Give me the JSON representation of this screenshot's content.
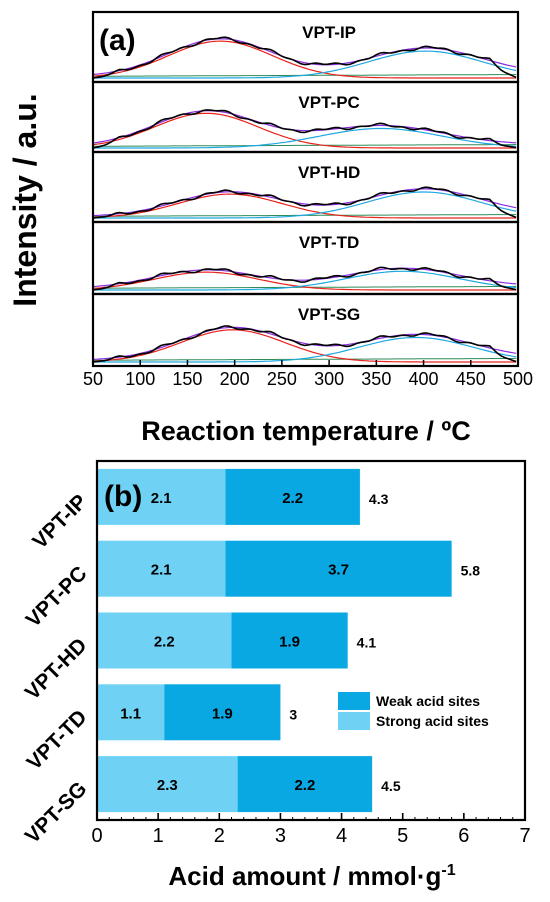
{
  "chart_data": [
    {
      "type": "line",
      "panel_label": "(a)",
      "xlabel": "Reaction temperature / ºC",
      "ylabel": "Intensity / a.u.",
      "xlim": [
        50,
        500
      ],
      "xticks": [
        "50",
        "100",
        "150",
        "200",
        "250",
        "300",
        "350",
        "400",
        "450",
        "500"
      ],
      "series_colors": {
        "measured": "#000000",
        "fit_total": "#8a2be2",
        "low_temp_peak": "#e8231d",
        "high_temp_peak": "#1fa8e0",
        "baseline": "#2e8b57"
      },
      "panels": [
        {
          "name": "VPT-IP",
          "low_peak": {
            "center": 185,
            "width": 55,
            "height": 0.85
          },
          "high_peak": {
            "center": 402,
            "width": 60,
            "height": 0.62
          }
        },
        {
          "name": "VPT-PC",
          "low_peak": {
            "center": 170,
            "width": 55,
            "height": 0.8
          },
          "high_peak": {
            "center": 355,
            "width": 65,
            "height": 0.45
          }
        },
        {
          "name": "VPT-HD",
          "low_peak": {
            "center": 195,
            "width": 55,
            "height": 0.55
          },
          "high_peak": {
            "center": 400,
            "width": 60,
            "height": 0.6
          }
        },
        {
          "name": "VPT-TD",
          "low_peak": {
            "center": 170,
            "width": 55,
            "height": 0.4
          },
          "high_peak": {
            "center": 378,
            "width": 60,
            "height": 0.42
          }
        },
        {
          "name": "VPT-SG",
          "low_peak": {
            "center": 198,
            "width": 55,
            "height": 0.72
          },
          "high_peak": {
            "center": 392,
            "width": 60,
            "height": 0.55
          }
        }
      ]
    },
    {
      "type": "bar",
      "orientation": "horizontal",
      "stacked": true,
      "panel_label": "(b)",
      "xlabel": "Acid amount / mmol·g",
      "xlabel_sup": "-1",
      "xlim": [
        0,
        7
      ],
      "xticks": [
        "0",
        "1",
        "2",
        "3",
        "4",
        "5",
        "6",
        "7"
      ],
      "categories": [
        "VPT-IP",
        "VPT-PC",
        "VPT-HD",
        "VPT-TD",
        "VPT-SG"
      ],
      "series": [
        {
          "name": "Strong acid sites",
          "color": "#6fd2f5",
          "values": [
            2.1,
            2.1,
            2.2,
            1.1,
            2.3
          ]
        },
        {
          "name": "Weak acid sites",
          "color": "#0aa8e2",
          "values": [
            2.2,
            3.7,
            1.9,
            1.9,
            2.2
          ]
        }
      ],
      "totals": [
        "4.3",
        "5.8",
        "4.1",
        "3",
        "4.5"
      ],
      "segment_labels": {
        "strong": [
          "2.1",
          "2.1",
          "2.2",
          "1.1",
          "2.3"
        ],
        "weak": [
          "2.2",
          "3.7",
          "1.9",
          "1.9",
          "2.2"
        ]
      },
      "legend": [
        "Weak acid sites",
        "Strong acid sites"
      ],
      "legend_position": "right"
    }
  ]
}
